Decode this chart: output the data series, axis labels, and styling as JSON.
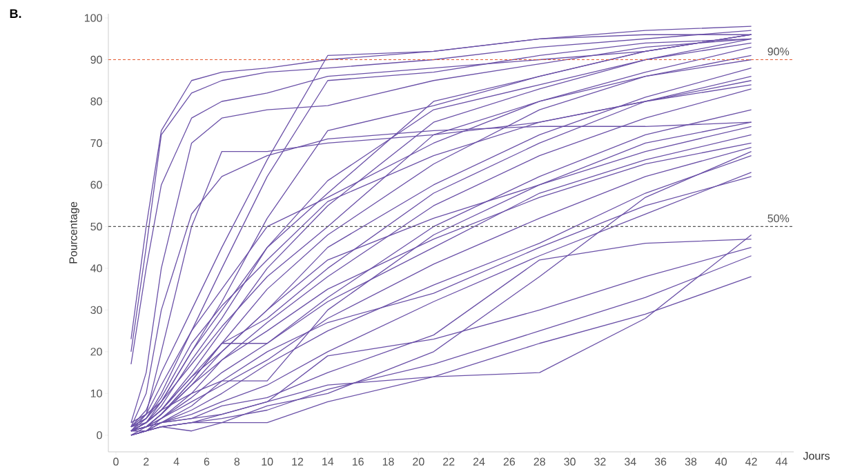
{
  "chart_data": {
    "type": "line",
    "xlabel": "Jours",
    "ylabel": "Pourcentage",
    "annotations": [
      "B."
    ],
    "x": [
      1,
      2,
      3,
      5,
      7,
      10,
      14,
      21,
      28,
      35,
      42
    ],
    "xlim": [
      -0.5,
      44.8
    ],
    "ylim": [
      -4,
      101
    ],
    "xticks": [
      0,
      2,
      4,
      6,
      8,
      10,
      12,
      14,
      16,
      18,
      20,
      22,
      24,
      26,
      28,
      30,
      32,
      34,
      36,
      38,
      40,
      42,
      44
    ],
    "yticks": [
      0,
      10,
      20,
      30,
      40,
      50,
      60,
      70,
      80,
      90,
      100
    ],
    "ref_lines": [
      {
        "axis": "y",
        "value": 90,
        "label": "90%",
        "color": "#e4572e",
        "line_style": "dashed"
      },
      {
        "axis": "y",
        "value": 50,
        "label": "50%",
        "color": "#555555",
        "line_style": "dashed"
      }
    ],
    "series": [
      {
        "color": "#6a50a7",
        "values": [
          23,
          50,
          73,
          85,
          87,
          88,
          90,
          92,
          95,
          97,
          98
        ]
      },
      {
        "color": "#6a50a7",
        "values": [
          20,
          45,
          72,
          82,
          85,
          87,
          88,
          90,
          93,
          95,
          97
        ]
      },
      {
        "color": "#6a50a7",
        "values": [
          17,
          40,
          60,
          76,
          80,
          82,
          86,
          88,
          90,
          92,
          96
        ]
      },
      {
        "color": "#6a50a7",
        "values": [
          3,
          15,
          40,
          70,
          76,
          78,
          79,
          85,
          89,
          93,
          95
        ]
      },
      {
        "color": "#6a50a7",
        "values": [
          2,
          10,
          30,
          53,
          62,
          67,
          71,
          73,
          74,
          74,
          75
        ]
      },
      {
        "color": "#6a50a7",
        "values": [
          1,
          5,
          20,
          50,
          68,
          68,
          70,
          72,
          75,
          80,
          84
        ]
      },
      {
        "color": "#6a50a7",
        "values": [
          2,
          6,
          15,
          30,
          45,
          66,
          91,
          92,
          95,
          96,
          96
        ]
      },
      {
        "color": "#6a50a7",
        "values": [
          1,
          4,
          10,
          25,
          40,
          62,
          85,
          87,
          91,
          94,
          95
        ]
      },
      {
        "color": "#6a50a7",
        "values": [
          1,
          3,
          8,
          20,
          32,
          52,
          73,
          79,
          86,
          92,
          96
        ]
      },
      {
        "color": "#6a50a7",
        "values": [
          1,
          3,
          7,
          18,
          28,
          45,
          61,
          78,
          84,
          90,
          94
        ]
      },
      {
        "color": "#6a50a7",
        "values": [
          2,
          3,
          6,
          15,
          25,
          40,
          55,
          75,
          83,
          90,
          95
        ]
      },
      {
        "color": "#6a50a7",
        "values": [
          2,
          4,
          8,
          17,
          26,
          38,
          50,
          72,
          80,
          87,
          93
        ]
      },
      {
        "color": "#6a50a7",
        "values": [
          1,
          3,
          6,
          14,
          22,
          35,
          48,
          65,
          78,
          86,
          90
        ]
      },
      {
        "color": "#6a50a7",
        "values": [
          1,
          2,
          5,
          12,
          20,
          30,
          45,
          60,
          72,
          81,
          88
        ]
      },
      {
        "color": "#6a50a7",
        "values": [
          0,
          2,
          5,
          13,
          22,
          28,
          40,
          58,
          70,
          80,
          86
        ]
      },
      {
        "color": "#6a50a7",
        "values": [
          1,
          2,
          4,
          10,
          18,
          27,
          38,
          55,
          67,
          76,
          83
        ]
      },
      {
        "color": "#6a50a7",
        "values": [
          1,
          2,
          5,
          13,
          22,
          22,
          33,
          50,
          62,
          72,
          78
        ]
      },
      {
        "color": "#6a50a7",
        "values": [
          1,
          3,
          6,
          10,
          13,
          13,
          30,
          48,
          60,
          70,
          75
        ]
      },
      {
        "color": "#6a50a7",
        "values": [
          0,
          1,
          4,
          9,
          15,
          22,
          32,
          45,
          58,
          66,
          72
        ]
      },
      {
        "color": "#6a50a7",
        "values": [
          1,
          2,
          4,
          8,
          12,
          18,
          28,
          41,
          52,
          62,
          69
        ]
      },
      {
        "color": "#6a50a7",
        "values": [
          0,
          1,
          3,
          7,
          13,
          20,
          27,
          34,
          45,
          55,
          62
        ]
      },
      {
        "color": "#6a50a7",
        "values": [
          1,
          2,
          3,
          6,
          10,
          17,
          25,
          36,
          46,
          58,
          67
        ]
      },
      {
        "color": "#6a50a7",
        "values": [
          0,
          1,
          3,
          5,
          8,
          12,
          20,
          32,
          43,
          53,
          63
        ]
      },
      {
        "color": "#6a50a7",
        "values": [
          1,
          2,
          3,
          4,
          5,
          8,
          19,
          23,
          30,
          38,
          45
        ]
      },
      {
        "color": "#6a50a7",
        "values": [
          0,
          1,
          2,
          3,
          4,
          6,
          11,
          17,
          25,
          33,
          43
        ]
      },
      {
        "color": "#6a50a7",
        "values": [
          1,
          2,
          3,
          4,
          7,
          9,
          15,
          24,
          42,
          46,
          47
        ]
      },
      {
        "color": "#6a50a7",
        "values": [
          0,
          1,
          2,
          3,
          3,
          3,
          8,
          14,
          15,
          28,
          48
        ]
      },
      {
        "color": "#6a50a7",
        "values": [
          1,
          1,
          2,
          3,
          5,
          8,
          12,
          14,
          22,
          29,
          38
        ]
      },
      {
        "color": "#6a50a7",
        "values": [
          0,
          1,
          2,
          1,
          3,
          7,
          10,
          20,
          38,
          57,
          68
        ]
      },
      {
        "color": "#6a50a7",
        "values": [
          3,
          5,
          8,
          20,
          30,
          45,
          58,
          80,
          86,
          92,
          96
        ]
      },
      {
        "color": "#6a50a7",
        "values": [
          2,
          5,
          12,
          25,
          35,
          50,
          57,
          70,
          80,
          86,
          91
        ]
      },
      {
        "color": "#6a50a7",
        "values": [
          1,
          3,
          6,
          14,
          20,
          30,
          42,
          52,
          60,
          68,
          74
        ]
      },
      {
        "color": "#6a50a7",
        "values": [
          1,
          2,
          5,
          12,
          18,
          25,
          35,
          47,
          57,
          65,
          70
        ]
      },
      {
        "color": "#6a50a7",
        "values": [
          2,
          4,
          9,
          22,
          31,
          42,
          56,
          67,
          75,
          80,
          85
        ]
      }
    ]
  }
}
